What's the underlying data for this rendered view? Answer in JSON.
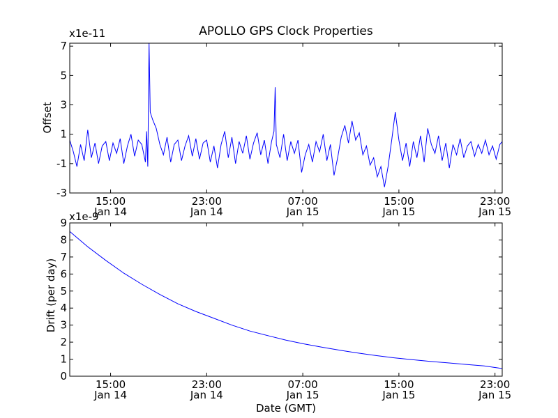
{
  "title": "APOLLO GPS Clock Properties",
  "colors": {
    "line": "#0000ff",
    "axes": "#000000",
    "background": "#ffffff"
  },
  "chart_data": [
    {
      "type": "line",
      "name": "offset",
      "ylabel": "Offset",
      "y_multiplier": "x1e-11",
      "ylim": [
        -3,
        7.2
      ],
      "y_ticks": [
        -3,
        -1,
        1,
        3,
        5,
        7
      ],
      "y_tick_labels": [
        "-3",
        "-1",
        "1",
        "3",
        "5",
        "7"
      ],
      "xlim_hours": [
        11.6,
        47.6
      ],
      "x_ticks_hours": [
        15,
        23,
        31,
        39,
        47
      ],
      "x_tick_labels": [
        [
          "15:00",
          "Jan 14"
        ],
        [
          "23:00",
          "Jan 14"
        ],
        [
          "07:00",
          "Jan 15"
        ],
        [
          "15:00",
          "Jan 15"
        ],
        [
          "23:00",
          "Jan 15"
        ]
      ],
      "x_unit": "hours since Jan 14 00:00 GMT",
      "series": [
        {
          "name": "Offset",
          "x": [
            11.6,
            11.9,
            12.2,
            12.5,
            12.8,
            13.1,
            13.4,
            13.7,
            14.0,
            14.3,
            14.6,
            14.9,
            15.2,
            15.5,
            15.8,
            16.1,
            16.4,
            16.7,
            17.0,
            17.3,
            17.6,
            17.9,
            18.0,
            18.1,
            18.2,
            18.3,
            18.5,
            18.8,
            19.1,
            19.4,
            19.7,
            20.0,
            20.3,
            20.6,
            20.9,
            21.2,
            21.5,
            21.8,
            22.1,
            22.4,
            22.7,
            23.0,
            23.3,
            23.6,
            23.9,
            24.2,
            24.5,
            24.8,
            25.1,
            25.4,
            25.7,
            26.0,
            26.3,
            26.6,
            26.9,
            27.2,
            27.5,
            27.8,
            28.1,
            28.4,
            28.6,
            28.7,
            28.8,
            29.1,
            29.4,
            29.7,
            30.0,
            30.3,
            30.6,
            30.9,
            31.2,
            31.5,
            31.8,
            32.1,
            32.4,
            32.7,
            33.0,
            33.3,
            33.6,
            33.9,
            34.2,
            34.5,
            34.8,
            35.1,
            35.4,
            35.7,
            36.0,
            36.3,
            36.6,
            36.9,
            37.2,
            37.5,
            37.8,
            38.1,
            38.4,
            38.7,
            39.0,
            39.3,
            39.6,
            39.9,
            40.2,
            40.5,
            40.8,
            41.1,
            41.4,
            41.7,
            42.0,
            42.3,
            42.6,
            42.9,
            43.2,
            43.5,
            43.8,
            44.1,
            44.4,
            44.7,
            45.0,
            45.3,
            45.6,
            45.9,
            46.2,
            46.5,
            46.8,
            47.1,
            47.4,
            47.6
          ],
          "values": [
            0.6,
            -0.2,
            -1.2,
            0.3,
            -0.8,
            1.3,
            -0.6,
            0.4,
            -1.0,
            0.2,
            0.5,
            -0.8,
            0.4,
            -0.3,
            0.7,
            -1.0,
            0.2,
            1.0,
            -0.5,
            0.6,
            0.3,
            -0.9,
            1.2,
            -1.2,
            7.2,
            2.5,
            2.0,
            1.4,
            0.3,
            -0.4,
            0.8,
            -0.9,
            0.3,
            0.6,
            -0.8,
            0.2,
            0.9,
            -0.5,
            0.7,
            -0.7,
            0.4,
            0.6,
            -0.9,
            0.2,
            -1.3,
            0.3,
            1.2,
            -0.6,
            0.8,
            -1.0,
            0.5,
            -0.3,
            0.9,
            -0.7,
            0.4,
            1.1,
            -0.4,
            0.6,
            -1.0,
            0.5,
            1.2,
            4.2,
            0.3,
            -0.6,
            1.0,
            -0.8,
            0.5,
            -0.3,
            0.6,
            -1.6,
            -0.4,
            0.3,
            -0.9,
            0.5,
            -0.2,
            1.0,
            -0.8,
            0.3,
            -1.8,
            -0.6,
            0.8,
            1.6,
            0.4,
            1.9,
            0.6,
            1.1,
            -0.4,
            0.2,
            -1.1,
            -0.6,
            -1.9,
            -1.2,
            -2.6,
            -1.2,
            0.6,
            2.5,
            0.6,
            -0.8,
            0.4,
            -1.2,
            0.5,
            -0.6,
            0.9,
            -0.9,
            1.4,
            0.3,
            -0.3,
            0.9,
            -0.8,
            0.4,
            -1.3,
            0.3,
            -0.4,
            0.7,
            -0.6,
            0.2,
            0.5,
            -0.5,
            0.3,
            -0.3,
            0.6,
            -0.4,
            0.2,
            -0.7,
            0.3,
            0.5
          ]
        }
      ]
    },
    {
      "type": "line",
      "name": "drift",
      "ylabel": "Drift (per day)",
      "xlabel": "Date (GMT)",
      "y_multiplier": "x1e-9",
      "ylim": [
        0,
        9
      ],
      "y_ticks": [
        0,
        1,
        2,
        3,
        4,
        5,
        6,
        7,
        8,
        9
      ],
      "y_tick_labels": [
        "0",
        "1",
        "2",
        "3",
        "4",
        "5",
        "6",
        "7",
        "8",
        "9"
      ],
      "xlim_hours": [
        11.6,
        47.6
      ],
      "x_ticks_hours": [
        15,
        23,
        31,
        39,
        47
      ],
      "x_tick_labels": [
        [
          "15:00",
          "Jan 14"
        ],
        [
          "23:00",
          "Jan 14"
        ],
        [
          "07:00",
          "Jan 15"
        ],
        [
          "15:00",
          "Jan 15"
        ],
        [
          "23:00",
          "Jan 15"
        ]
      ],
      "x_unit": "hours since Jan 14 00:00 GMT",
      "series": [
        {
          "name": "Drift",
          "x": [
            11.6,
            13.1,
            14.6,
            16.1,
            17.6,
            19.1,
            20.6,
            22.1,
            23.6,
            25.1,
            26.6,
            28.1,
            29.6,
            31.1,
            32.6,
            34.1,
            35.6,
            37.1,
            38.6,
            40.1,
            41.6,
            43.1,
            44.6,
            46.1,
            47.6
          ],
          "values": [
            8.5,
            7.6,
            6.8,
            6.05,
            5.4,
            4.8,
            4.25,
            3.8,
            3.4,
            3.0,
            2.65,
            2.38,
            2.12,
            1.9,
            1.7,
            1.52,
            1.36,
            1.21,
            1.08,
            0.97,
            0.87,
            0.78,
            0.69,
            0.6,
            0.45
          ]
        }
      ]
    }
  ]
}
